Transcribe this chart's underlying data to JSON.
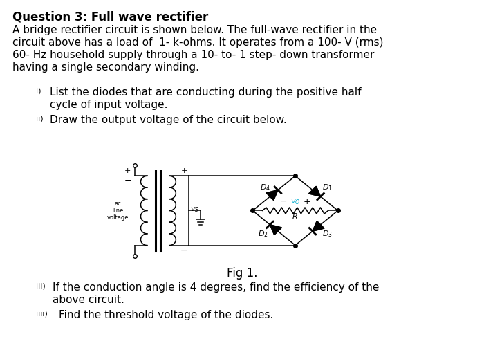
{
  "background_color": "#ffffff",
  "title": "Question 3: Full wave rectifier",
  "line1": "A bridge rectifier circuit is shown below. The full-wave rectifier in the",
  "line2": "circuit above has a load of  1- k-ohms. It operates from a 100- V (rms)",
  "line3": "60- Hz household supply through a 10- to- 1 step- down transformer",
  "line4": "having a single secondary winding.",
  "qi_num": "i)",
  "qi_text1": "List the diodes that are conducting during the positive half",
  "qi_text2": "cycle of input voltage.",
  "qii_num": "ii)",
  "qii_text": "Draw the output voltage of the circuit below.",
  "fig_caption": "Fig 1.",
  "qiii_num": "iii)",
  "qiii_text1": "If the conduction angle is 4 degrees, find the efficiency of the",
  "qiii_text2": "above circuit.",
  "qiiii_num": "iiii)",
  "qiiii_text": "Find the threshold voltage of the diodes.",
  "font_size_title": 12,
  "font_size_body": 11,
  "font_size_sub": 8
}
